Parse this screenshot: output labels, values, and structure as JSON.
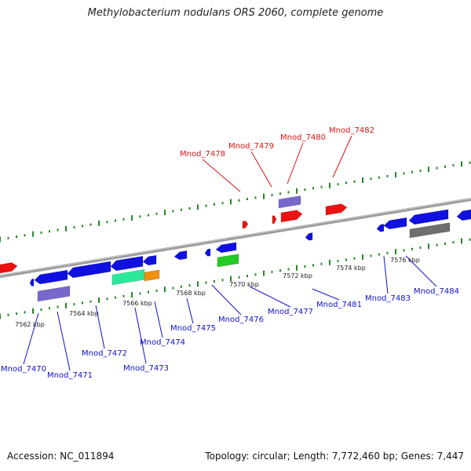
{
  "title": "Methylobacterium nodulans ORS 2060, complete genome",
  "footer": {
    "accession": "Accession: NC_011894",
    "topology": "Topology: circular; Length: 7,772,460 bp; Genes: 7,447"
  },
  "colors": {
    "forward_label": "#dd1111",
    "reverse_label": "#1111cc",
    "backbone": "#888888",
    "ticks": "#228822"
  },
  "kbp_ticks": [
    "7562 kbp",
    "7564 kbp",
    "7566 kbp",
    "7568 kbp",
    "7570 kbp",
    "7572 kbp",
    "7574 kbp",
    "7576 kbp"
  ],
  "genes_forward": [
    "Mnod_7478",
    "Mnod_7479",
    "Mnod_7480",
    "Mnod_7482"
  ],
  "genes_reverse": [
    "Mnod_7470",
    "Mnod_7471",
    "Mnod_7472",
    "Mnod_7473",
    "Mnod_7474",
    "Mnod_7475",
    "Mnod_7476",
    "Mnod_7477",
    "Mnod_7481",
    "Mnod_7483",
    "Mnod_7484"
  ]
}
